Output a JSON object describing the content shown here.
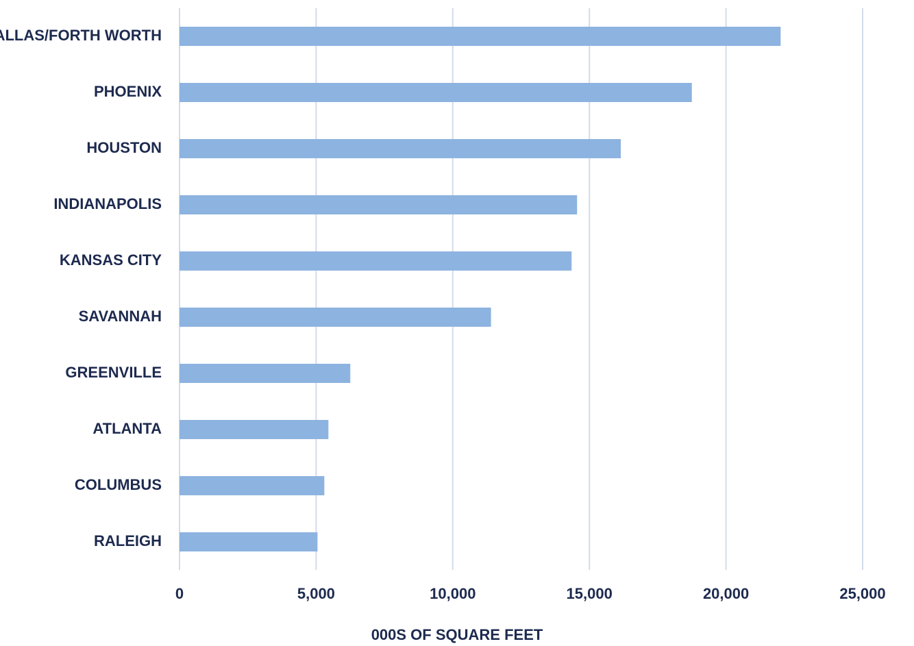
{
  "chart_data": {
    "type": "bar",
    "orientation": "horizontal",
    "x_label": "000S OF SQUARE FEET",
    "categories": [
      "DALLAS/FORTH WORTH",
      "PHOENIX",
      "HOUSTON",
      "INDIANAPOLIS",
      "KANSAS CITY",
      "SAVANNAH",
      "GREENVILLE",
      "ATLANTA",
      "COLUMBUS",
      "RALEIGH"
    ],
    "values": [
      22000,
      18750,
      16150,
      14550,
      14350,
      11400,
      6250,
      5450,
      5300,
      5050
    ],
    "color": "#8db3e0",
    "xlim": [
      0,
      25000
    ],
    "xticks": [
      0,
      {
        "value": 5000,
        "label": "5,000"
      },
      {
        "value": 10000,
        "label": "10,000"
      },
      {
        "value": 15000,
        "label": "15,000"
      },
      {
        "value": 20000,
        "label": "20,000"
      },
      {
        "value": 25000,
        "label": "25,000"
      }
    ],
    "grid": true
  }
}
